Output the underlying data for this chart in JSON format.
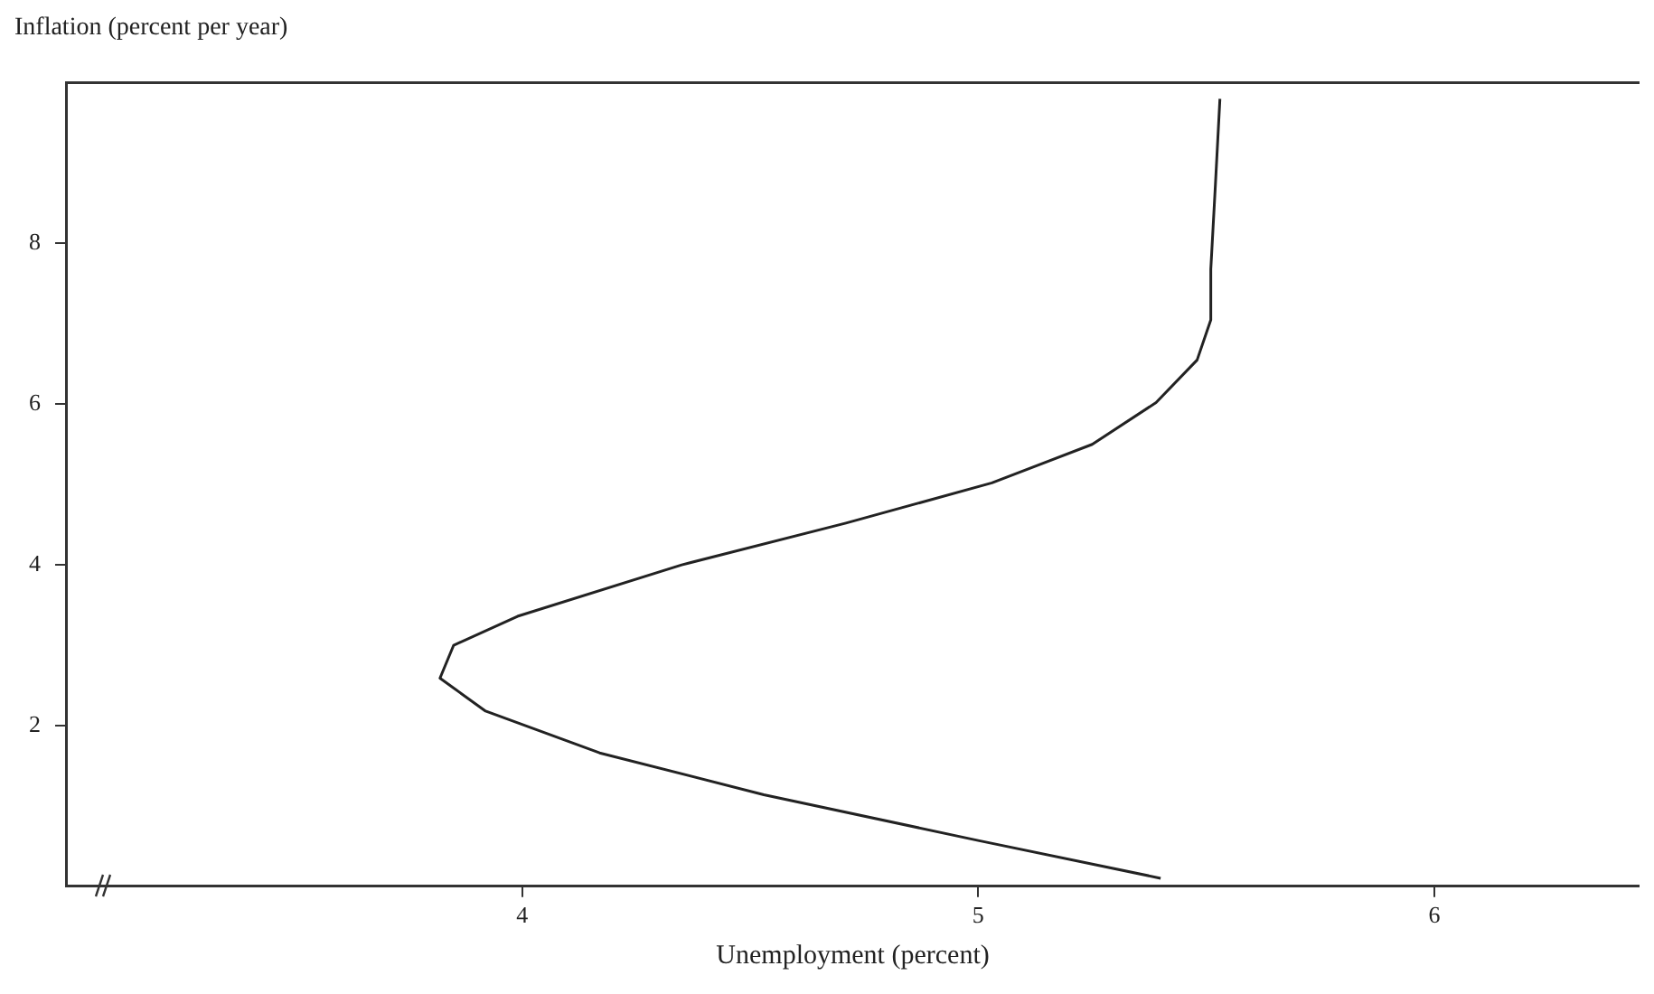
{
  "chart_data": {
    "type": "line",
    "xlabel": "Unemployment (percent)",
    "ylabel": "Inflation (percent per year)",
    "xlim": [
      3,
      6.45
    ],
    "xticks": [
      4,
      5,
      6
    ],
    "ylim": [
      0,
      10
    ],
    "yticks": [
      2,
      4,
      6,
      8
    ],
    "marker": "none",
    "line_style": "solid",
    "series": [
      {
        "color": "#222222",
        "x": [
          5.4,
          5.0,
          4.53,
          4.17,
          3.92,
          3.82,
          3.85,
          3.99,
          4.35,
          4.71,
          5.03,
          5.25,
          5.39,
          5.48,
          5.51,
          5.51,
          5.52,
          5.53
        ],
        "values": [
          0.1,
          0.57,
          1.14,
          1.66,
          2.18,
          2.59,
          3.0,
          3.36,
          4.0,
          4.52,
          5.02,
          5.5,
          6.02,
          6.55,
          7.05,
          7.68,
          8.72,
          9.8
        ]
      }
    ]
  }
}
